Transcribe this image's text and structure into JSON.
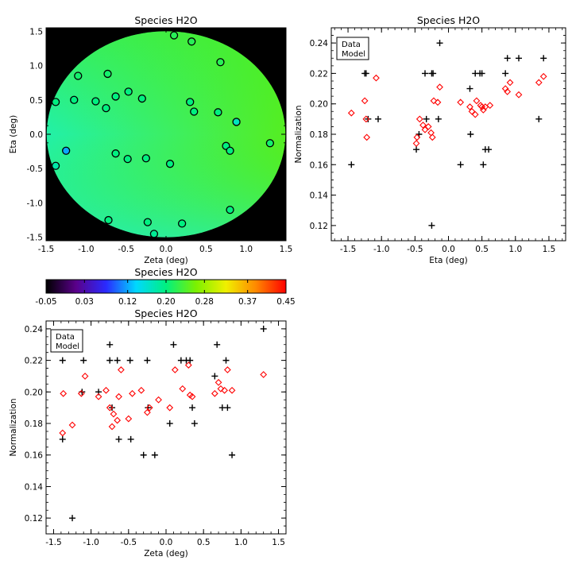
{
  "chart_data": [
    {
      "type": "scatter",
      "title": "Species H2O",
      "xlabel": "Zeta (deg)",
      "ylabel": "Eta (deg)",
      "xlim": [
        -1.5,
        1.5
      ],
      "ylim": [
        -1.55,
        1.55
      ],
      "xticks": [
        "-1.5",
        "-1.0",
        "-0.5",
        "0.0",
        "0.5",
        "1.0",
        "1.5"
      ],
      "xtick_values": [
        -1.5,
        -1.0,
        -0.5,
        0.0,
        0.5,
        1.0,
        1.5
      ],
      "yticks": [
        "-1.5",
        "-1.0",
        "-0.5",
        "0.0",
        "0.5",
        "1.0",
        "1.5"
      ],
      "ytick_values": [
        -1.5,
        -1.0,
        -0.5,
        0.0,
        0.5,
        1.0,
        1.5
      ],
      "background": "#000000",
      "field_colors": {
        "left": "#22f0a8",
        "top": "#44ee22",
        "right": "#55ee22",
        "bottom": "#22eebb"
      },
      "points": [
        {
          "x": 0.1,
          "y": 1.44,
          "v": 0.22
        },
        {
          "x": 0.32,
          "y": 1.35,
          "v": 0.22
        },
        {
          "x": -1.1,
          "y": 0.85,
          "v": 0.21
        },
        {
          "x": -0.73,
          "y": 0.88,
          "v": 0.21
        },
        {
          "x": 0.68,
          "y": 1.05,
          "v": 0.22
        },
        {
          "x": -1.38,
          "y": 0.47,
          "v": 0.2
        },
        {
          "x": -1.15,
          "y": 0.5,
          "v": 0.2
        },
        {
          "x": -0.88,
          "y": 0.48,
          "v": 0.2
        },
        {
          "x": -0.75,
          "y": 0.38,
          "v": 0.2
        },
        {
          "x": -0.63,
          "y": 0.55,
          "v": 0.2
        },
        {
          "x": -0.47,
          "y": 0.62,
          "v": 0.2
        },
        {
          "x": -0.3,
          "y": 0.52,
          "v": 0.2
        },
        {
          "x": 0.3,
          "y": 0.47,
          "v": 0.2
        },
        {
          "x": 0.35,
          "y": 0.33,
          "v": 0.2
        },
        {
          "x": 0.65,
          "y": 0.32,
          "v": 0.2
        },
        {
          "x": 0.88,
          "y": 0.18,
          "v": 0.17
        },
        {
          "x": 0.75,
          "y": -0.17,
          "v": 0.2
        },
        {
          "x": 0.8,
          "y": -0.24,
          "v": 0.2
        },
        {
          "x": 1.3,
          "y": -0.13,
          "v": 0.21
        },
        {
          "x": -1.25,
          "y": -0.24,
          "v": 0.12
        },
        {
          "x": -0.63,
          "y": -0.28,
          "v": 0.2
        },
        {
          "x": -0.48,
          "y": -0.36,
          "v": 0.2
        },
        {
          "x": -0.25,
          "y": -0.35,
          "v": 0.2
        },
        {
          "x": 0.05,
          "y": -0.43,
          "v": 0.2
        },
        {
          "x": -1.38,
          "y": -0.46,
          "v": 0.18
        },
        {
          "x": -0.72,
          "y": -1.25,
          "v": 0.2
        },
        {
          "x": -0.23,
          "y": -1.28,
          "v": 0.2
        },
        {
          "x": 0.2,
          "y": -1.3,
          "v": 0.2
        },
        {
          "x": 0.8,
          "y": -1.1,
          "v": 0.2
        },
        {
          "x": -0.15,
          "y": -1.45,
          "v": 0.19
        }
      ]
    },
    {
      "type": "scatter",
      "title": "Species H2O",
      "xlabel": "Eta (deg)",
      "ylabel": "Normalization",
      "xlim": [
        -1.75,
        1.75
      ],
      "ylim": [
        0.11,
        0.25
      ],
      "xticks": [
        "-1.5",
        "-1.0",
        "-0.5",
        "0.0",
        "0.5",
        "1.0",
        "1.5"
      ],
      "xtick_values": [
        -1.5,
        -1.0,
        -0.5,
        0.0,
        0.5,
        1.0,
        1.5
      ],
      "yticks": [
        "0.12",
        "0.14",
        "0.16",
        "0.18",
        "0.20",
        "0.22",
        "0.24"
      ],
      "ytick_values": [
        0.12,
        0.14,
        0.16,
        0.18,
        0.2,
        0.22,
        0.24
      ],
      "legend": [
        "Data",
        "Model"
      ],
      "legend_colors": [
        "#000000",
        "#ff0000"
      ],
      "series": [
        {
          "name": "Data",
          "marker": "plus",
          "color": "#000000",
          "points": [
            [
              -1.45,
              0.16
            ],
            [
              -1.25,
              0.22
            ],
            [
              -1.23,
              0.22
            ],
            [
              -1.2,
              0.19
            ],
            [
              -1.05,
              0.19
            ],
            [
              -0.48,
              0.17
            ],
            [
              -0.44,
              0.18
            ],
            [
              -0.35,
              0.22
            ],
            [
              -0.33,
              0.19
            ],
            [
              -0.25,
              0.22
            ],
            [
              -0.23,
              0.22
            ],
            [
              -0.25,
              0.12
            ],
            [
              -0.13,
              0.24
            ],
            [
              -0.15,
              0.19
            ],
            [
              0.18,
              0.16
            ],
            [
              0.32,
              0.21
            ],
            [
              0.33,
              0.18
            ],
            [
              0.4,
              0.22
            ],
            [
              0.47,
              0.22
            ],
            [
              0.5,
              0.22
            ],
            [
              0.52,
              0.16
            ],
            [
              0.55,
              0.17
            ],
            [
              0.6,
              0.17
            ],
            [
              0.85,
              0.22
            ],
            [
              0.88,
              0.23
            ],
            [
              1.05,
              0.23
            ],
            [
              1.35,
              0.19
            ],
            [
              1.42,
              0.23
            ]
          ]
        },
        {
          "name": "Model",
          "marker": "diamond",
          "color": "#ff0000",
          "points": [
            [
              -1.45,
              0.194
            ],
            [
              -1.25,
              0.202
            ],
            [
              -1.23,
              0.19
            ],
            [
              -1.22,
              0.178
            ],
            [
              -1.08,
              0.217
            ],
            [
              -0.48,
              0.174
            ],
            [
              -0.47,
              0.178
            ],
            [
              -0.43,
              0.19
            ],
            [
              -0.38,
              0.186
            ],
            [
              -0.35,
              0.183
            ],
            [
              -0.3,
              0.185
            ],
            [
              -0.26,
              0.181
            ],
            [
              -0.24,
              0.178
            ],
            [
              -0.22,
              0.202
            ],
            [
              -0.16,
              0.201
            ],
            [
              -0.13,
              0.211
            ],
            [
              0.18,
              0.201
            ],
            [
              0.32,
              0.198
            ],
            [
              0.35,
              0.195
            ],
            [
              0.4,
              0.193
            ],
            [
              0.42,
              0.202
            ],
            [
              0.48,
              0.199
            ],
            [
              0.5,
              0.198
            ],
            [
              0.52,
              0.196
            ],
            [
              0.55,
              0.198
            ],
            [
              0.62,
              0.199
            ],
            [
              0.85,
              0.21
            ],
            [
              0.88,
              0.208
            ],
            [
              0.92,
              0.214
            ],
            [
              1.05,
              0.206
            ],
            [
              1.35,
              0.214
            ],
            [
              1.42,
              0.218
            ]
          ]
        }
      ]
    },
    {
      "type": "colorbar",
      "title": "Species H2O",
      "range": [
        -0.05,
        0.45
      ],
      "ticks": [
        "-0.05",
        "0.03",
        "0.12",
        "0.20",
        "0.28",
        "0.37",
        "0.45"
      ],
      "tick_values": [
        -0.05,
        0.03,
        0.12,
        0.2,
        0.28,
        0.37,
        0.45
      ],
      "stops": [
        "#000000",
        "#5a008a",
        "#2a2aff",
        "#00d8ff",
        "#00f080",
        "#7cf000",
        "#f0f000",
        "#ff8800",
        "#ff0000"
      ]
    },
    {
      "type": "scatter",
      "title": "Species H2O",
      "xlabel": "Zeta (deg)",
      "ylabel": "Normalization",
      "xlim": [
        -1.6,
        1.6
      ],
      "ylim": [
        0.11,
        0.245
      ],
      "xticks": [
        "-1.5",
        "-1.0",
        "-0.5",
        "0.0",
        "0.5",
        "1.0",
        "1.5"
      ],
      "xtick_values": [
        -1.5,
        -1.0,
        -0.5,
        0.0,
        0.5,
        1.0,
        1.5
      ],
      "yticks": [
        "0.12",
        "0.14",
        "0.16",
        "0.18",
        "0.20",
        "0.22",
        "0.24"
      ],
      "ytick_values": [
        0.12,
        0.14,
        0.16,
        0.18,
        0.2,
        0.22,
        0.24
      ],
      "legend": [
        "Data",
        "Model"
      ],
      "legend_colors": [
        "#000000",
        "#ff0000"
      ],
      "series": [
        {
          "name": "Data",
          "marker": "plus",
          "color": "#000000",
          "points": [
            [
              -1.38,
              0.17
            ],
            [
              -1.38,
              0.22
            ],
            [
              -1.25,
              0.12
            ],
            [
              -1.12,
              0.2
            ],
            [
              -1.1,
              0.22
            ],
            [
              -0.9,
              0.2
            ],
            [
              -0.75,
              0.23
            ],
            [
              -0.75,
              0.22
            ],
            [
              -0.72,
              0.19
            ],
            [
              -0.65,
              0.22
            ],
            [
              -0.63,
              0.17
            ],
            [
              -0.48,
              0.22
            ],
            [
              -0.47,
              0.17
            ],
            [
              -0.3,
              0.16
            ],
            [
              -0.25,
              0.22
            ],
            [
              -0.24,
              0.19
            ],
            [
              -0.15,
              0.16
            ],
            [
              0.05,
              0.18
            ],
            [
              0.1,
              0.23
            ],
            [
              0.2,
              0.22
            ],
            [
              0.27,
              0.22
            ],
            [
              0.32,
              0.22
            ],
            [
              0.35,
              0.19
            ],
            [
              0.38,
              0.18
            ],
            [
              0.65,
              0.21
            ],
            [
              0.68,
              0.23
            ],
            [
              0.75,
              0.19
            ],
            [
              0.8,
              0.22
            ],
            [
              0.82,
              0.19
            ],
            [
              0.88,
              0.16
            ],
            [
              1.3,
              0.24
            ]
          ]
        },
        {
          "name": "Model",
          "marker": "diamond",
          "color": "#ff0000",
          "points": [
            [
              -1.38,
              0.174
            ],
            [
              -1.37,
              0.199
            ],
            [
              -1.25,
              0.179
            ],
            [
              -1.13,
              0.199
            ],
            [
              -1.08,
              0.21
            ],
            [
              -0.9,
              0.197
            ],
            [
              -0.8,
              0.201
            ],
            [
              -0.75,
              0.19
            ],
            [
              -0.72,
              0.178
            ],
            [
              -0.7,
              0.186
            ],
            [
              -0.65,
              0.182
            ],
            [
              -0.63,
              0.197
            ],
            [
              -0.6,
              0.214
            ],
            [
              -0.5,
              0.183
            ],
            [
              -0.45,
              0.199
            ],
            [
              -0.33,
              0.201
            ],
            [
              -0.25,
              0.187
            ],
            [
              -0.22,
              0.19
            ],
            [
              -0.1,
              0.195
            ],
            [
              0.05,
              0.19
            ],
            [
              0.12,
              0.214
            ],
            [
              0.22,
              0.202
            ],
            [
              0.3,
              0.217
            ],
            [
              0.32,
              0.198
            ],
            [
              0.35,
              0.197
            ],
            [
              0.65,
              0.199
            ],
            [
              0.7,
              0.206
            ],
            [
              0.73,
              0.202
            ],
            [
              0.78,
              0.201
            ],
            [
              0.82,
              0.214
            ],
            [
              0.88,
              0.201
            ],
            [
              1.3,
              0.211
            ]
          ]
        }
      ]
    }
  ]
}
